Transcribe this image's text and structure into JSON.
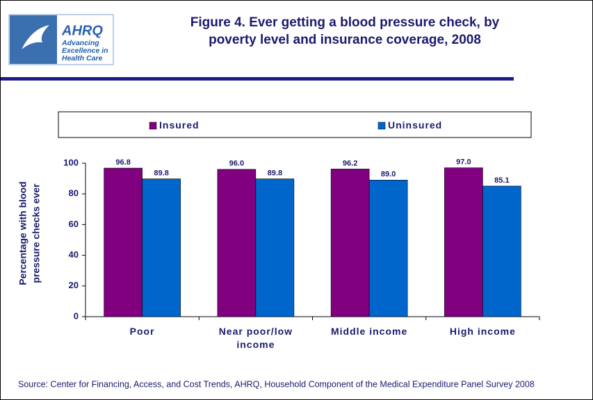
{
  "header": {
    "logo_name": "AHRQ",
    "logo_tagline": "Advancing Excellence in Health Care"
  },
  "chart_data": {
    "type": "bar",
    "title": [
      "Figure 4. Ever getting a blood pressure check, by",
      "poverty level and insurance coverage, 2008"
    ],
    "y_label": [
      "Percentage with blood",
      "pressure checks ever"
    ],
    "categories": [
      "Poor",
      "Near poor/low income",
      "Middle income",
      "High income"
    ],
    "series": [
      {
        "name": "Insured",
        "color": "#800080",
        "values": [
          96.8,
          96.0,
          96.2,
          97.0
        ],
        "value_labels": [
          "96.8",
          "96.0",
          "96.2",
          "97.0"
        ]
      },
      {
        "name": "Uninsured",
        "color": "#0066cc",
        "values": [
          89.8,
          89.8,
          89.0,
          85.1
        ],
        "value_labels": [
          "89.8",
          "89.8",
          "89.0",
          "85.1"
        ]
      }
    ],
    "ylim": [
      0,
      100
    ],
    "yticks": [
      0,
      20,
      40,
      60,
      80,
      100
    ],
    "source": "Source: Center for Financing, Access, and Cost Trends, AHRQ, Household Component of the Medical Expenditure Panel Survey 2008"
  }
}
